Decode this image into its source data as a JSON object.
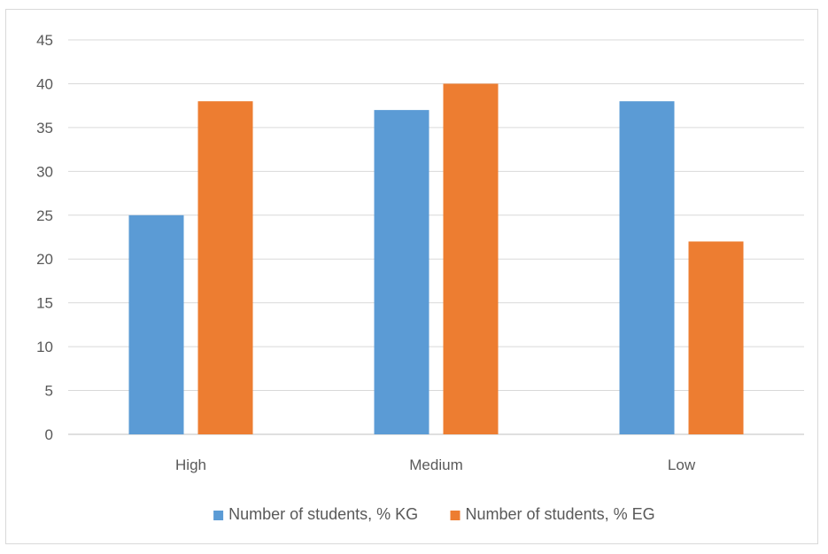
{
  "chart_data": {
    "type": "bar",
    "categories": [
      "High",
      "Medium",
      "Low"
    ],
    "series": [
      {
        "name": "Number of students, % KG",
        "values": [
          25,
          37,
          38
        ],
        "color": "#5b9bd5"
      },
      {
        "name": "Number of students, % EG",
        "values": [
          38,
          40,
          22
        ],
        "color": "#ed7d31"
      }
    ],
    "title": "",
    "xlabel": "",
    "ylabel": "",
    "ylim": [
      0,
      45
    ],
    "yticks": [
      "0",
      "5",
      "10",
      "15",
      "20",
      "25",
      "30",
      "35",
      "40",
      "45"
    ],
    "grid": true,
    "legend_position": "bottom"
  }
}
